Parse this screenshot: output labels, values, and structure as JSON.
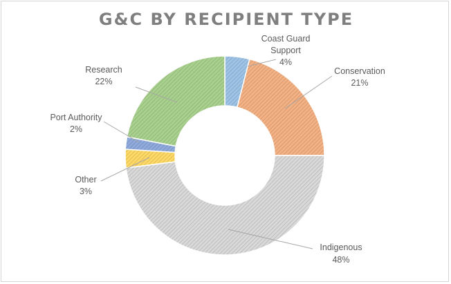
{
  "chart_data": {
    "type": "pie",
    "subtype": "doughnut",
    "title": "G&C BY RECIPIENT TYPE",
    "slices": [
      {
        "label": "Coast Guard Support",
        "value": 4,
        "display": "4%",
        "color": "#9dc3e6"
      },
      {
        "label": "Conservation",
        "value": 21,
        "display": "21%",
        "color": "#f4b183"
      },
      {
        "label": "Indigenous",
        "value": 48,
        "display": "48%",
        "color": "#d9d9d9"
      },
      {
        "label": "Other",
        "value": 3,
        "display": "3%",
        "color": "#ffd966"
      },
      {
        "label": "Port Authority",
        "value": 2,
        "display": "2%",
        "color": "#8faadc"
      },
      {
        "label": "Research",
        "value": 22,
        "display": "22%",
        "color": "#a9d18e"
      }
    ],
    "legend": "none",
    "data_labels": "outside with leader lines",
    "pattern": "diagonal hatch"
  }
}
